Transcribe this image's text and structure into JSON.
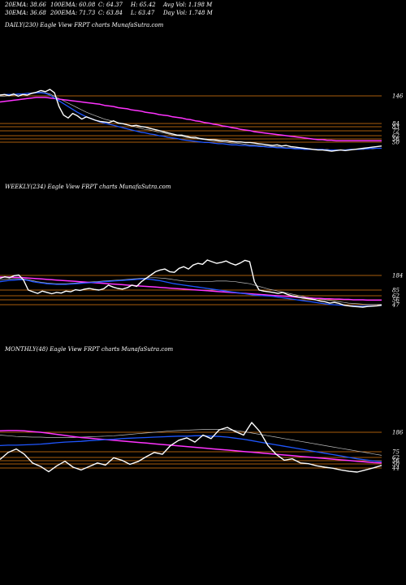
{
  "header": {
    "row1": [
      "20EMA: 38.66",
      "100EMA: 60.08",
      "C: 64.37",
      "H: 65.42",
      "Avg Vol: 1.198 M"
    ],
    "row2": [
      "30EMA: 36.68",
      "200EMA: 71.73",
      "C: 63.84",
      "L: 63.47",
      "Day Vol: 1.748 M"
    ]
  },
  "colors": {
    "price": "#ffffff",
    "ema_blue": "#1f56ff",
    "ema_magenta": "#ff33ff",
    "ema_gray": "#bdbdbd",
    "level": "#e07a10"
  },
  "chart_data": [
    {
      "type": "line",
      "title": "DAILY(230) Eagle  View  FRPT charts MunafaSutra.com",
      "level_labels": [
        "146",
        "84",
        "83",
        "72",
        "62",
        "56",
        "50"
      ],
      "series": [
        {
          "role": "price",
          "values": [
            140,
            141,
            139,
            142,
            138,
            141,
            140,
            143,
            145,
            148,
            146,
            150,
            144,
            120,
            105,
            100,
            108,
            104,
            98,
            102,
            99,
            96,
            94,
            93,
            92,
            95,
            91,
            90,
            88,
            86,
            87,
            85,
            84,
            82,
            80,
            78,
            76,
            74,
            72,
            70,
            70,
            68,
            66,
            66,
            64,
            63,
            62,
            62,
            61,
            60,
            60,
            59,
            58,
            58,
            57,
            57,
            56,
            55,
            54,
            53,
            52,
            53,
            51,
            52,
            50,
            49,
            48,
            47,
            46,
            45,
            44,
            44,
            43,
            42,
            43,
            44,
            43,
            44,
            45,
            46,
            47,
            48,
            49,
            50,
            51
          ]
        },
        {
          "role": "ema_blue",
          "values": [
            140,
            141,
            141,
            141,
            142,
            142,
            143,
            143,
            144,
            144,
            143,
            140,
            135,
            130,
            125,
            120,
            115,
            110,
            106,
            102,
            99,
            96,
            93,
            91,
            89,
            87,
            85,
            83,
            81,
            79,
            77,
            75,
            74,
            72,
            71,
            69,
            68,
            66,
            65,
            64,
            62,
            61,
            60,
            59,
            58,
            57,
            57,
            56,
            55,
            55,
            54,
            53,
            53,
            52,
            52,
            51,
            51,
            50,
            50,
            49,
            49,
            48,
            48,
            47,
            47,
            46,
            46,
            45,
            45,
            45,
            45,
            45,
            44,
            44,
            44,
            44,
            44,
            45,
            45,
            45,
            46,
            46,
            47,
            47,
            47
          ]
        },
        {
          "role": "ema_magenta",
          "values": [
            128,
            129,
            130,
            131,
            132,
            133,
            134,
            135,
            136,
            136,
            136,
            135,
            134,
            133,
            132,
            131,
            130,
            129,
            128,
            127,
            126,
            125,
            124,
            122,
            121,
            120,
            118,
            117,
            116,
            114,
            113,
            112,
            110,
            109,
            108,
            106,
            105,
            104,
            102,
            101,
            100,
            98,
            97,
            95,
            94,
            92,
            91,
            89,
            88,
            86,
            85,
            83,
            82,
            80,
            79,
            78,
            76,
            75,
            74,
            73,
            72,
            71,
            70,
            69,
            68,
            67,
            66,
            65,
            64,
            63,
            62,
            62,
            61,
            61,
            60,
            60,
            60,
            60,
            60,
            60,
            60,
            60,
            60,
            60,
            60
          ]
        },
        {
          "role": "ema_gray",
          "values": [
            138,
            138,
            139,
            140,
            141,
            142,
            143,
            144,
            145,
            145,
            144,
            142,
            138,
            134,
            130,
            126,
            122,
            118,
            114,
            110,
            107,
            104,
            101,
            98,
            96,
            94,
            92,
            90,
            88,
            86,
            84,
            82,
            80,
            79,
            77,
            75,
            74,
            72,
            70,
            69,
            68,
            66,
            65,
            64,
            63,
            62,
            61,
            60,
            59,
            58,
            57,
            56,
            56,
            55,
            54,
            53,
            53,
            52,
            51,
            51,
            50,
            50,
            49,
            48,
            48,
            47,
            47,
            46,
            46,
            45,
            45,
            45,
            45,
            44,
            44,
            44,
            44,
            45,
            45,
            45,
            45,
            46,
            46,
            47,
            47
          ]
        }
      ]
    },
    {
      "type": "line",
      "title": "WEEKLY(234) Eagle  View  FRPT charts MunafaSutra.com",
      "level_labels": [
        "184",
        "85",
        "62",
        "56",
        "47"
      ],
      "series": [
        {
          "role": "price",
          "values": [
            130,
            135,
            132,
            138,
            140,
            125,
            95,
            90,
            85,
            92,
            88,
            84,
            88,
            86,
            92,
            90,
            96,
            94,
            98,
            100,
            97,
            95,
            99,
            110,
            104,
            100,
            98,
            102,
            110,
            106,
            120,
            130,
            140,
            150,
            155,
            158,
            150,
            148,
            160,
            165,
            158,
            170,
            175,
            172,
            185,
            180,
            175,
            178,
            182,
            175,
            170,
            176,
            184,
            180,
            120,
            95,
            92,
            90,
            88,
            85,
            88,
            82,
            78,
            75,
            72,
            70,
            68,
            66,
            62,
            60,
            56,
            58,
            55,
            50,
            48,
            46,
            45,
            44,
            46,
            47,
            48,
            50
          ]
        },
        {
          "role": "ema_blue",
          "values": [
            120,
            122,
            124,
            125,
            126,
            126,
            124,
            120,
            118,
            116,
            114,
            113,
            112,
            112,
            112,
            113,
            114,
            115,
            116,
            117,
            118,
            119,
            120,
            121,
            122,
            123,
            124,
            125,
            126,
            127,
            128,
            128,
            127,
            125,
            123,
            120,
            117,
            114,
            112,
            110,
            108,
            106,
            104,
            102,
            100,
            98,
            96,
            94,
            92,
            90,
            88,
            86,
            84,
            82,
            80,
            79,
            78,
            77,
            76,
            74,
            72,
            70,
            68,
            66,
            64,
            62,
            60,
            58,
            56,
            54,
            52,
            51,
            50,
            49,
            48,
            48,
            47,
            47,
            48,
            48,
            48,
            49
          ]
        },
        {
          "role": "ema_magenta",
          "values": [
            134,
            134,
            134,
            133,
            133,
            132,
            131,
            130,
            129,
            128,
            127,
            126,
            125,
            124,
            123,
            122,
            121,
            120,
            119,
            118,
            117,
            116,
            115,
            114,
            113,
            112,
            111,
            110,
            109,
            108,
            107,
            106,
            105,
            104,
            103,
            102,
            101,
            100,
            99,
            98,
            97,
            96,
            95,
            94,
            93,
            92,
            91,
            90,
            89,
            88,
            87,
            86,
            85,
            84,
            83,
            82,
            81,
            80,
            79,
            78,
            77,
            76,
            75,
            74,
            73,
            72,
            71,
            70,
            70,
            69,
            69,
            68,
            68,
            67,
            67,
            66,
            66,
            66,
            65,
            65,
            65,
            65
          ]
        },
        {
          "role": "ema_gray",
          "values": [
            126,
            127,
            128,
            129,
            129,
            128,
            126,
            123,
            120,
            118,
            116,
            115,
            114,
            114,
            114,
            115,
            116,
            117,
            118,
            119,
            120,
            121,
            122,
            123,
            124,
            125,
            126,
            127,
            128,
            129,
            130,
            131,
            132,
            132,
            131,
            130,
            128,
            126,
            124,
            122,
            121,
            120,
            120,
            120,
            121,
            121,
            122,
            122,
            122,
            121,
            120,
            118,
            116,
            114,
            110,
            106,
            102,
            98,
            95,
            92,
            89,
            86,
            83,
            80,
            77,
            74,
            72,
            70,
            68,
            66,
            64,
            62,
            60,
            58,
            56,
            55,
            54,
            53,
            52,
            52,
            52,
            52
          ]
        }
      ]
    },
    {
      "type": "line",
      "title": "MONTHLY(48) Eagle  View  FRPT charts MunafaSutra.com",
      "level_labels": [
        "186",
        "75",
        "62",
        "56",
        "50",
        "44"
      ],
      "series": [
        {
          "role": "price",
          "values": [
            80,
            100,
            110,
            95,
            70,
            60,
            45,
            62,
            75,
            58,
            50,
            60,
            70,
            64,
            85,
            78,
            66,
            74,
            88,
            100,
            95,
            120,
            135,
            142,
            130,
            150,
            140,
            165,
            172,
            160,
            150,
            186,
            160,
            120,
            95,
            78,
            82,
            70,
            68,
            62,
            58,
            55,
            50,
            46,
            44,
            50,
            56,
            63
          ]
        },
        {
          "role": "ema_blue",
          "values": [
            120,
            121,
            121,
            122,
            123,
            124,
            126,
            128,
            130,
            131,
            132,
            134,
            135,
            137,
            138,
            140,
            141,
            142,
            143,
            144,
            145,
            146,
            147,
            147,
            148,
            148,
            147,
            146,
            144,
            141,
            138,
            134,
            130,
            126,
            122,
            118,
            114,
            110,
            106,
            102,
            98,
            94,
            90,
            86,
            82,
            79,
            76,
            74
          ]
        },
        {
          "role": "ema_magenta",
          "values": [
            162,
            163,
            163,
            162,
            160,
            158,
            155,
            152,
            149,
            146,
            143,
            141,
            139,
            137,
            135,
            133,
            131,
            129,
            127,
            125,
            123,
            121,
            119,
            117,
            115,
            113,
            111,
            109,
            107,
            105,
            103,
            101,
            99,
            97,
            95,
            93,
            91,
            89,
            87,
            85,
            83,
            81,
            79,
            77,
            75,
            73,
            71,
            70
          ]
        },
        {
          "role": "ema_gray",
          "values": [
            150,
            148,
            146,
            145,
            144,
            144,
            143,
            143,
            143,
            143,
            144,
            145,
            146,
            147,
            148,
            150,
            152,
            154,
            156,
            158,
            160,
            162,
            163,
            164,
            165,
            166,
            166,
            166,
            165,
            163,
            160,
            156,
            152,
            148,
            144,
            140,
            136,
            132,
            128,
            124,
            120,
            116,
            112,
            108,
            104,
            100,
            96,
            92
          ]
        }
      ]
    }
  ]
}
